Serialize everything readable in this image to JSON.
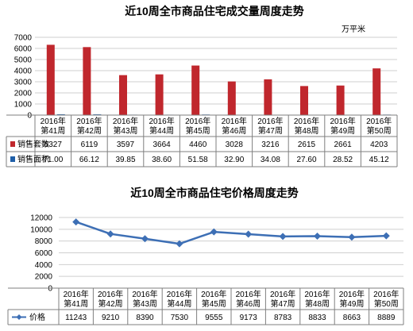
{
  "chart_data": [
    {
      "type": "bar",
      "title": "近10周全市商品住宅成交量周度走势",
      "unit": "万平米",
      "categories": [
        [
          "2016年",
          "第41周"
        ],
        [
          "2016年",
          "第42周"
        ],
        [
          "2016年",
          "第43周"
        ],
        [
          "2016年",
          "第44周"
        ],
        [
          "2016年",
          "第45周"
        ],
        [
          "2016年",
          "第46周"
        ],
        [
          "2016年",
          "第47周"
        ],
        [
          "2016年",
          "第48周"
        ],
        [
          "2016年",
          "第49周"
        ],
        [
          "2016年",
          "第50周"
        ]
      ],
      "ylim": [
        0,
        7000
      ],
      "yticks": [
        "0",
        "1000",
        "2000",
        "3000",
        "4000",
        "5000",
        "6000",
        "7000"
      ],
      "grid": true,
      "legend": "data-table",
      "series": [
        {
          "name": "销售套数",
          "color": "#c0272d",
          "values": [
            6327,
            6119,
            3597,
            3664,
            4460,
            3028,
            3216,
            2615,
            2661,
            4203
          ],
          "labels": [
            "6327",
            "6119",
            "3597",
            "3664",
            "4460",
            "3028",
            "3216",
            "2615",
            "2661",
            "4203"
          ]
        },
        {
          "name": "销售面积",
          "color": "#1f5fa8",
          "values": [
            71.0,
            66.12,
            39.85,
            38.6,
            51.58,
            32.9,
            34.08,
            27.6,
            28.52,
            45.12
          ],
          "labels": [
            "71.00",
            "66.12",
            "39.85",
            "38.60",
            "51.58",
            "32.90",
            "34.08",
            "27.60",
            "28.52",
            "45.12"
          ]
        }
      ]
    },
    {
      "type": "line",
      "title": "近10周全市商品住宅价格周度走势",
      "categories": [
        [
          "2016年",
          "第41周"
        ],
        [
          "2016年",
          "第42周"
        ],
        [
          "2016年",
          "第43周"
        ],
        [
          "2016年",
          "第44周"
        ],
        [
          "2016年",
          "第45周"
        ],
        [
          "2016年",
          "第46周"
        ],
        [
          "2016年",
          "第47周"
        ],
        [
          "2016年",
          "第48周"
        ],
        [
          "2016年",
          "第49周"
        ],
        [
          "2016年",
          "第50周"
        ]
      ],
      "ylim": [
        0,
        12000
      ],
      "yticks": [
        "0",
        "2000",
        "4000",
        "6000",
        "8000",
        "10000",
        "12000"
      ],
      "grid": true,
      "legend": "data-table",
      "series": [
        {
          "name": "价格",
          "color": "#3d6fb5",
          "values": [
            11243,
            9210,
            8390,
            7530,
            9555,
            9173,
            8783,
            8833,
            8663,
            8889
          ],
          "labels": [
            "11243",
            "9210",
            "8390",
            "7530",
            "9555",
            "9173",
            "8783",
            "8833",
            "8663",
            "8889"
          ]
        }
      ]
    }
  ]
}
